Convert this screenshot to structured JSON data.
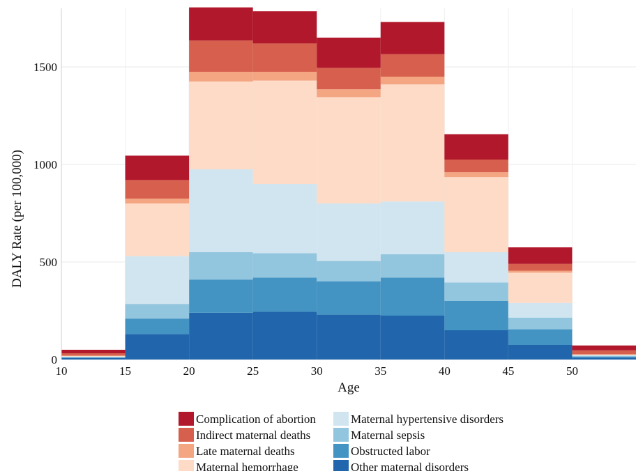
{
  "chart_data": {
    "type": "area",
    "stacked": true,
    "step": true,
    "title": "",
    "xlabel": "Age",
    "ylabel": "DALY Rate (per 100,000)",
    "xlim": [
      10,
      55
    ],
    "ylim": [
      0,
      1800
    ],
    "xticks": [
      "10",
      "15",
      "20",
      "25",
      "30",
      "35",
      "40",
      "45",
      "50"
    ],
    "yticks": [
      "0",
      "500",
      "1000",
      "1500"
    ],
    "grid": true,
    "legend_position": "bottom",
    "x": [
      10,
      15,
      20,
      25,
      30,
      35,
      40,
      45,
      50
    ],
    "series": [
      {
        "name": "Other maternal disorders",
        "color": "#2166ac",
        "values": [
          8,
          130,
          240,
          245,
          230,
          225,
          150,
          75,
          10
        ]
      },
      {
        "name": "Obstructed labor",
        "color": "#4393c3",
        "values": [
          3,
          80,
          170,
          175,
          170,
          195,
          150,
          80,
          5
        ]
      },
      {
        "name": "Maternal sepsis",
        "color": "#92c5de",
        "values": [
          2,
          75,
          140,
          125,
          105,
          120,
          95,
          60,
          4
        ]
      },
      {
        "name": "Maternal hypertensive disorders",
        "color": "#d1e5f0",
        "values": [
          2,
          245,
          425,
          355,
          295,
          270,
          155,
          75,
          3
        ]
      },
      {
        "name": "Maternal hemorrhage",
        "color": "#fddbc7",
        "values": [
          3,
          270,
          450,
          530,
          545,
          600,
          385,
          155,
          3
        ]
      },
      {
        "name": "Late maternal deaths",
        "color": "#f4a582",
        "values": [
          2,
          25,
          50,
          45,
          40,
          40,
          25,
          10,
          2
        ]
      },
      {
        "name": "Indirect maternal deaths",
        "color": "#d6604d",
        "values": [
          12,
          95,
          160,
          145,
          110,
          115,
          65,
          35,
          20
        ]
      },
      {
        "name": "Complication of abortion",
        "color": "#b2182b",
        "values": [
          18,
          125,
          170,
          165,
          155,
          165,
          130,
          85,
          25
        ]
      }
    ],
    "legend_order": [
      "Complication of abortion",
      "Indirect maternal deaths",
      "Late maternal deaths",
      "Maternal hemorrhage",
      "Maternal hypertensive disorders",
      "Maternal sepsis",
      "Obstructed labor",
      "Other maternal disorders"
    ]
  }
}
